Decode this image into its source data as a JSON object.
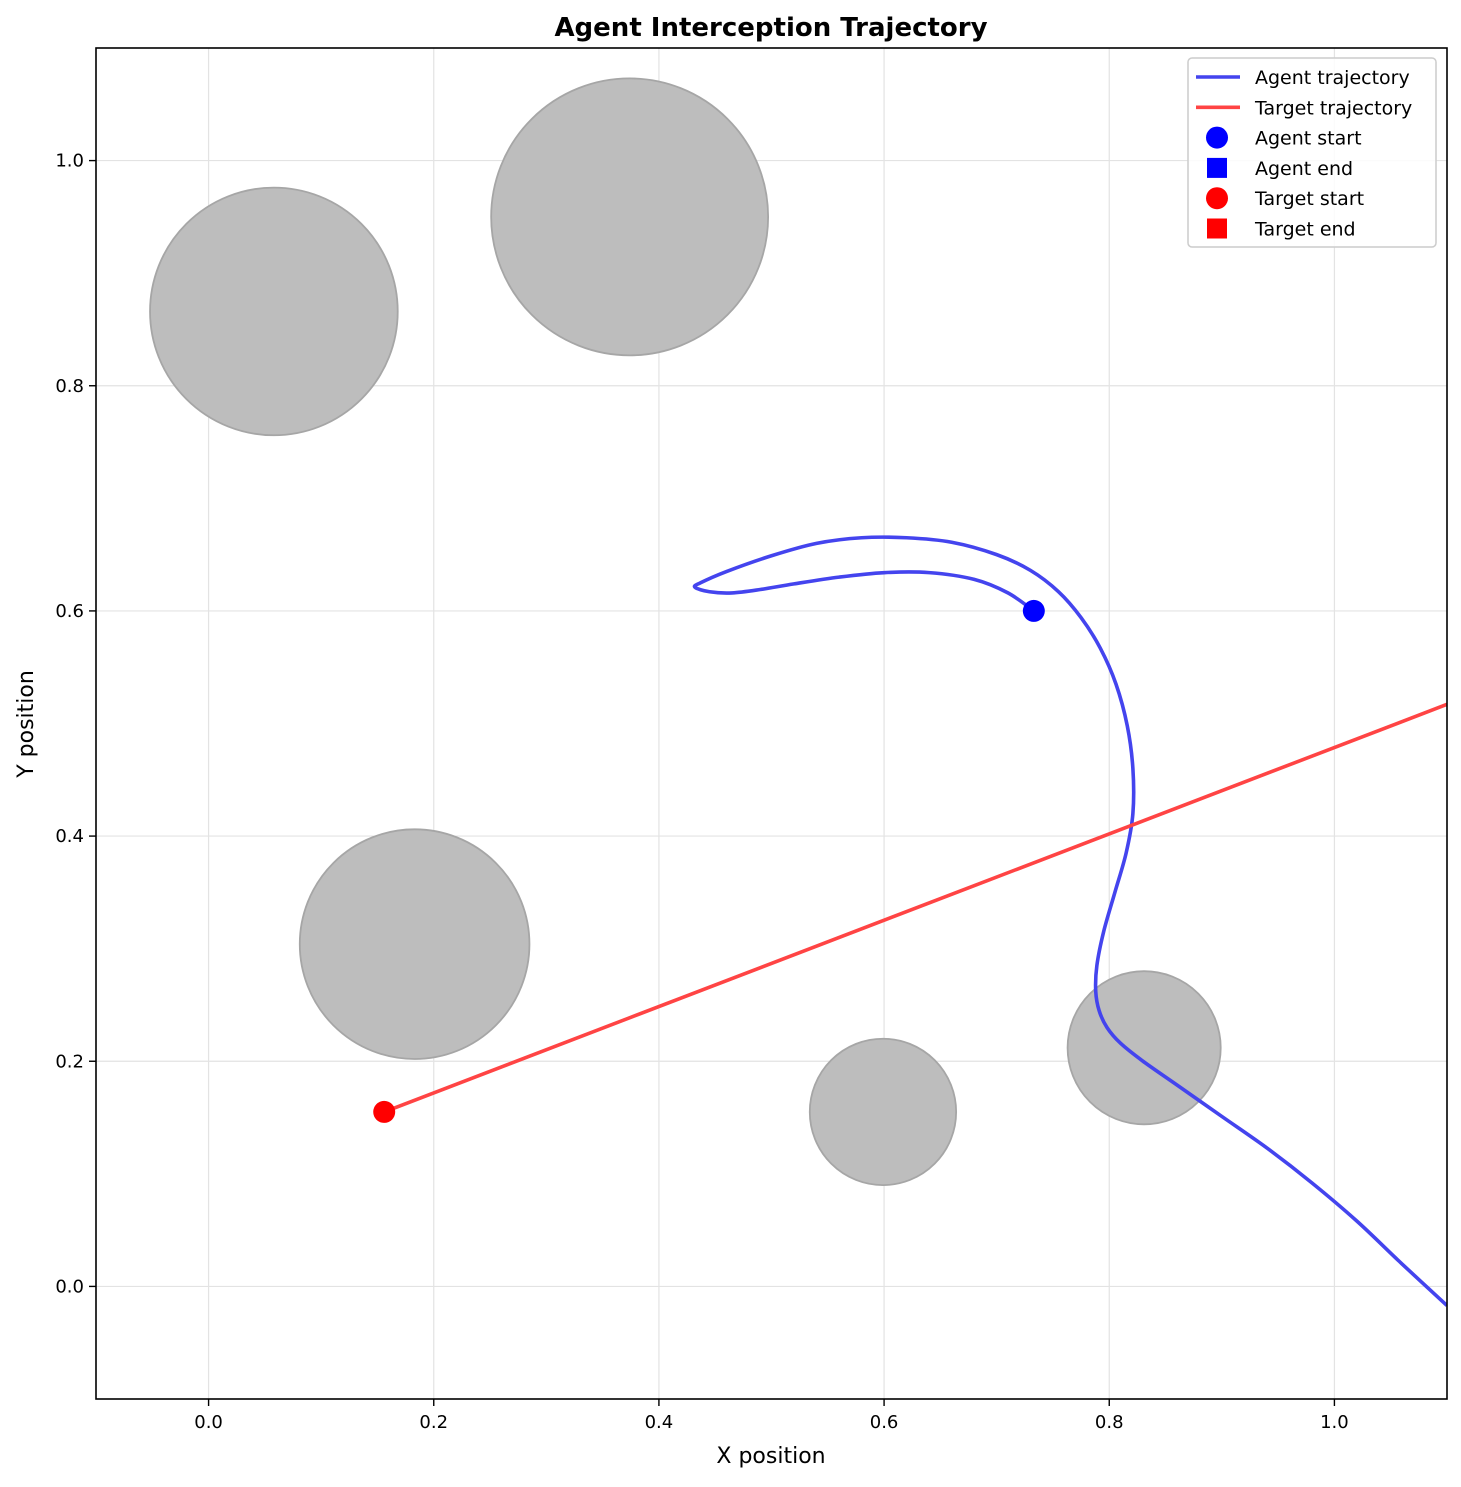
{
  "chart_data": {
    "type": "line",
    "title": "Agent Interception Trajectory",
    "xlabel": "X position",
    "ylabel": "Y position",
    "xlim": [
      -0.1,
      1.1
    ],
    "ylim": [
      -0.1,
      1.1
    ],
    "xticks": [
      0.0,
      0.2,
      0.4,
      0.6,
      0.8,
      1.0
    ],
    "yticks": [
      0.0,
      0.2,
      0.4,
      0.6,
      0.8,
      1.0
    ],
    "xtick_labels": [
      "0.0",
      "0.2",
      "0.4",
      "0.6",
      "0.8",
      "1.0"
    ],
    "ytick_labels": [
      "0.0",
      "0.2",
      "0.4",
      "0.6",
      "0.8",
      "1.0"
    ],
    "grid": true,
    "legend_position": "top-right",
    "obstacles": [
      {
        "x": 0.058,
        "y": 0.866,
        "r": 0.11
      },
      {
        "x": 0.374,
        "y": 0.95,
        "r": 0.123
      },
      {
        "x": 0.183,
        "y": 0.304,
        "r": 0.102
      },
      {
        "x": 0.599,
        "y": 0.155,
        "r": 0.065
      },
      {
        "x": 0.831,
        "y": 0.212,
        "r": 0.068
      }
    ],
    "colors": {
      "agent": "#0000ff",
      "target": "#ff0000",
      "obstacle": "#bdbdbd",
      "obstacle_edge": "#a6a6a6"
    },
    "series": [
      {
        "name": "Agent trajectory",
        "color": "#4444ee",
        "points": [
          [
            0.733,
            0.6
          ],
          [
            0.71,
            0.616
          ],
          [
            0.68,
            0.628
          ],
          [
            0.64,
            0.634
          ],
          [
            0.6,
            0.634
          ],
          [
            0.56,
            0.63
          ],
          [
            0.52,
            0.624
          ],
          [
            0.49,
            0.619
          ],
          [
            0.465,
            0.616
          ],
          [
            0.445,
            0.617
          ],
          [
            0.432,
            0.621
          ],
          [
            0.437,
            0.625
          ],
          [
            0.46,
            0.635
          ],
          [
            0.5,
            0.649
          ],
          [
            0.54,
            0.66
          ],
          [
            0.58,
            0.665
          ],
          [
            0.62,
            0.665
          ],
          [
            0.66,
            0.661
          ],
          [
            0.7,
            0.65
          ],
          [
            0.73,
            0.636
          ],
          [
            0.755,
            0.617
          ],
          [
            0.775,
            0.594
          ],
          [
            0.792,
            0.567
          ],
          [
            0.806,
            0.535
          ],
          [
            0.816,
            0.498
          ],
          [
            0.821,
            0.46
          ],
          [
            0.821,
            0.42
          ],
          [
            0.815,
            0.385
          ],
          [
            0.805,
            0.35
          ],
          [
            0.795,
            0.315
          ],
          [
            0.789,
            0.285
          ],
          [
            0.788,
            0.262
          ],
          [
            0.791,
            0.245
          ],
          [
            0.798,
            0.23
          ],
          [
            0.81,
            0.216
          ],
          [
            0.83,
            0.2
          ],
          [
            0.86,
            0.179
          ],
          [
            0.9,
            0.151
          ],
          [
            0.94,
            0.123
          ],
          [
            0.98,
            0.092
          ],
          [
            1.02,
            0.058
          ],
          [
            1.06,
            0.02
          ],
          [
            1.1,
            -0.017
          ]
        ]
      },
      {
        "name": "Target trajectory",
        "color": "#ff4444",
        "points": [
          [
            0.156,
            0.155
          ],
          [
            1.1,
            0.517
          ]
        ]
      }
    ],
    "markers": [
      {
        "name": "Agent start",
        "shape": "circle",
        "color": "#0000ff",
        "x": 0.733,
        "y": 0.6
      },
      {
        "name": "Agent end",
        "shape": "square",
        "color": "#0000ff",
        "x": null,
        "y": null
      },
      {
        "name": "Target start",
        "shape": "circle",
        "color": "#ff0000",
        "x": 0.156,
        "y": 0.155
      },
      {
        "name": "Target end",
        "shape": "square",
        "color": "#ff0000",
        "x": null,
        "y": null
      }
    ],
    "legend": [
      {
        "label": "Agent trajectory",
        "kind": "line",
        "color": "#4444ee"
      },
      {
        "label": "Target trajectory",
        "kind": "line",
        "color": "#ff4444"
      },
      {
        "label": "Agent start",
        "kind": "circle",
        "color": "#0000ff"
      },
      {
        "label": "Agent end",
        "kind": "square",
        "color": "#0000ff"
      },
      {
        "label": "Target start",
        "kind": "circle",
        "color": "#ff0000"
      },
      {
        "label": "Target end",
        "kind": "square",
        "color": "#ff0000"
      }
    ]
  }
}
